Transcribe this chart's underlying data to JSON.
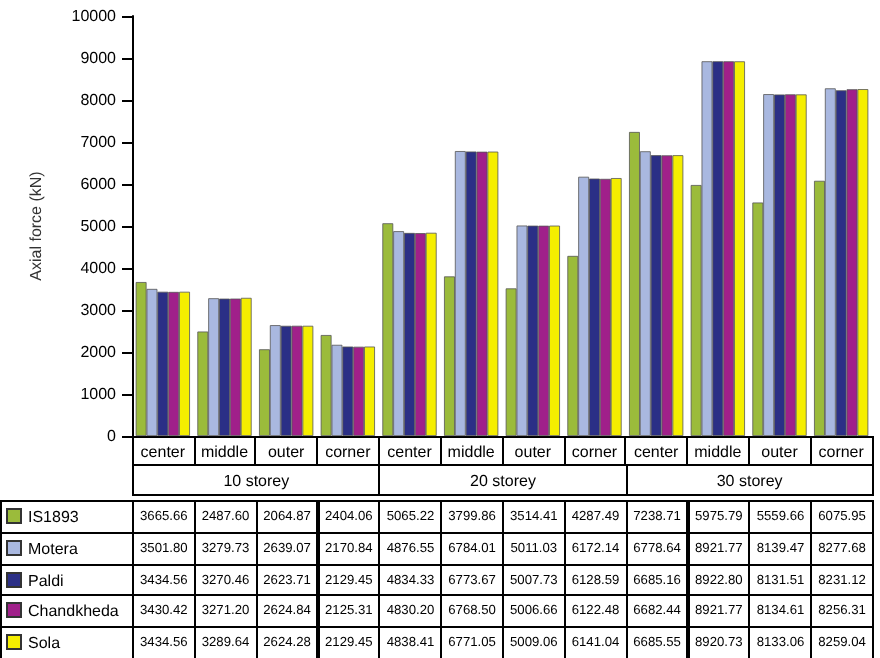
{
  "chart_data": {
    "type": "bar",
    "ylabel": "Axial force (kN)",
    "categories": [
      "center",
      "middle",
      "outer",
      "corner",
      "center",
      "middle",
      "outer",
      "corner",
      "center",
      "middle",
      "outer",
      "corner"
    ],
    "annotations": [
      "10 storey",
      "20 storey",
      "30 storey"
    ],
    "series": [
      {
        "name": "IS1893",
        "color": "#9bbb3b",
        "values": [
          3665.66,
          2487.6,
          2064.87,
          2404.06,
          5065.22,
          3799.86,
          3514.41,
          4287.49,
          7238.71,
          5975.79,
          5559.66,
          6075.95
        ],
        "value_labels": [
          "3665.66",
          "2487.60",
          "2064.87",
          "2404.06",
          "5065.22",
          "3799.86",
          "3514.41",
          "4287.49",
          "7238.71",
          "5975.79",
          "5559.66",
          "6075.95"
        ]
      },
      {
        "name": "Motera",
        "color": "#a9b8e0",
        "values": [
          3501.8,
          3279.73,
          2639.07,
          2170.84,
          4876.55,
          6784.01,
          5011.03,
          6172.14,
          6778.64,
          8921.77,
          8139.47,
          8277.68
        ],
        "value_labels": [
          "3501.80",
          "3279.73",
          "2639.07",
          "2170.84",
          "4876.55",
          "6784.01",
          "5011.03",
          "6172.14",
          "6778.64",
          "8921.77",
          "8139.47",
          "8277.68"
        ]
      },
      {
        "name": "Paldi",
        "color": "#2b2f86",
        "values": [
          3434.56,
          3270.46,
          2623.71,
          2129.45,
          4834.33,
          6773.67,
          5007.73,
          6128.59,
          6685.16,
          8922.8,
          8131.51,
          8231.12
        ],
        "value_labels": [
          "3434.56",
          "3270.46",
          "2623.71",
          "2129.45",
          "4834.33",
          "6773.67",
          "5007.73",
          "6128.59",
          "6685.16",
          "8922.80",
          "8131.51",
          "8231.12"
        ]
      },
      {
        "name": "Chandkheda",
        "color": "#a0208a",
        "values": [
          3430.42,
          3271.2,
          2624.84,
          2125.31,
          4830.2,
          6768.5,
          5006.66,
          6122.48,
          6682.44,
          8921.77,
          8134.61,
          8256.31
        ],
        "value_labels": [
          "3430.42",
          "3271.20",
          "2624.84",
          "2125.31",
          "4830.20",
          "6768.50",
          "5006.66",
          "6122.48",
          "6682.44",
          "8921.77",
          "8134.61",
          "8256.31"
        ]
      },
      {
        "name": "Sola",
        "color": "#f5ee00",
        "values": [
          3434.56,
          3289.64,
          2624.28,
          2129.45,
          4838.41,
          6771.05,
          5009.06,
          6141.04,
          6685.55,
          8920.73,
          8133.06,
          8259.04
        ],
        "value_labels": [
          "3434.56",
          "3289.64",
          "2624.28",
          "2129.45",
          "4838.41",
          "6771.05",
          "5009.06",
          "6141.04",
          "6685.55",
          "8920.73",
          "8133.06",
          "8259.04"
        ]
      }
    ],
    "ylim": [
      0,
      10000
    ],
    "yticks": [
      0,
      1000,
      2000,
      3000,
      4000,
      5000,
      6000,
      7000,
      8000,
      9000,
      10000
    ],
    "grid": false,
    "legend": "bottom left"
  }
}
